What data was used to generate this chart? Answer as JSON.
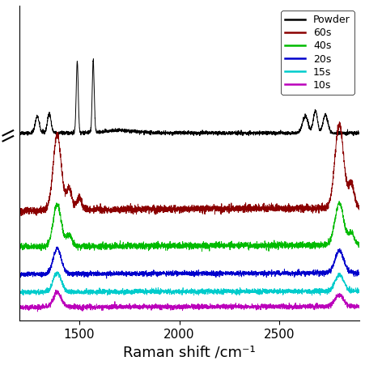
{
  "x_min": 1200,
  "x_max": 2900,
  "xlabel": "Raman shift /cm⁻¹",
  "xlabel_fontsize": 13,
  "tick_fontsize": 11,
  "legend_labels": [
    "Powder",
    "60s",
    "40s",
    "20s",
    "15s",
    "10s"
  ],
  "legend_colors": [
    "#000000",
    "#8B0000",
    "#00BB00",
    "#0000CC",
    "#00CCCC",
    "#BB00BB"
  ],
  "legend_fontsize": 9,
  "bg_color": "#ffffff",
  "line_width": 0.7,
  "x_ticks": [
    1500,
    2000,
    2500
  ]
}
